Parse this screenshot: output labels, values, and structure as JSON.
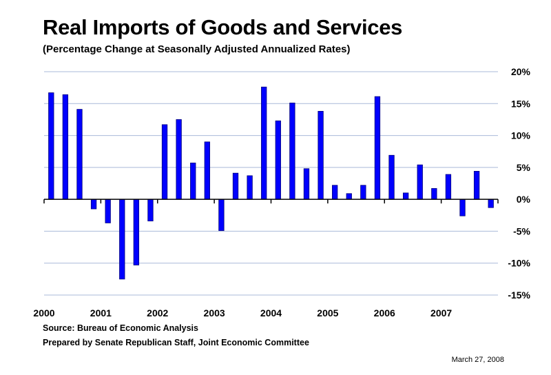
{
  "chart_data": {
    "type": "bar",
    "title": "Real Imports of Goods and Services",
    "subtitle": "(Percentage Change at Seasonally Adjusted Annualized Rates)",
    "xlabel": "",
    "ylabel": "",
    "ylim": [
      -15,
      20
    ],
    "y_ticks": [
      "20%",
      "15%",
      "10%",
      "5%",
      "0%",
      "-5%",
      "-10%",
      "-15%"
    ],
    "y_tick_values": [
      20,
      15,
      10,
      5,
      0,
      -5,
      -10,
      -15
    ],
    "year_labels": [
      "2000",
      "2001",
      "2002",
      "2003",
      "2004",
      "2005",
      "2006",
      "2007"
    ],
    "bar_color": "#0000ff",
    "categories": [
      "2000 Q1",
      "2000 Q2",
      "2000 Q3",
      "2000 Q4",
      "2001 Q1",
      "2001 Q2",
      "2001 Q3",
      "2001 Q4",
      "2002 Q1",
      "2002 Q2",
      "2002 Q3",
      "2002 Q4",
      "2003 Q1",
      "2003 Q2",
      "2003 Q3",
      "2003 Q4",
      "2004 Q1",
      "2004 Q2",
      "2004 Q3",
      "2004 Q4",
      "2005 Q1",
      "2005 Q2",
      "2005 Q3",
      "2005 Q4",
      "2006 Q1",
      "2006 Q2",
      "2006 Q3",
      "2006 Q4",
      "2007 Q1",
      "2007 Q2",
      "2007 Q3",
      "2007 Q4"
    ],
    "values": [
      16.7,
      16.4,
      14.1,
      -1.5,
      -3.7,
      -12.5,
      -10.3,
      -3.4,
      11.7,
      12.5,
      5.7,
      9.0,
      -4.9,
      4.1,
      3.7,
      17.6,
      12.3,
      15.1,
      4.8,
      13.8,
      2.2,
      0.9,
      2.2,
      16.1,
      6.9,
      1.0,
      5.4,
      1.7,
      3.9,
      -2.6,
      4.4,
      -1.3
    ]
  },
  "footer": {
    "source": "Source: Bureau of Economic Analysis",
    "prepared": "Prepared by Senate Republican Staff, Joint Economic Committee",
    "date": "March 27, 2008"
  }
}
